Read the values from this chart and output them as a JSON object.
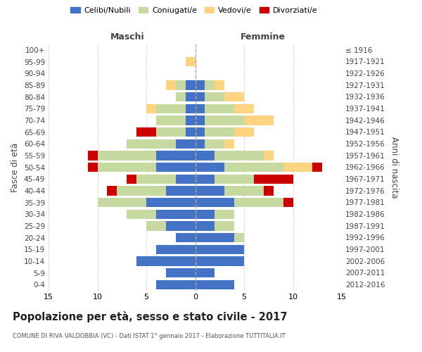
{
  "age_groups": [
    "0-4",
    "5-9",
    "10-14",
    "15-19",
    "20-24",
    "25-29",
    "30-34",
    "35-39",
    "40-44",
    "45-49",
    "50-54",
    "55-59",
    "60-64",
    "65-69",
    "70-74",
    "75-79",
    "80-84",
    "85-89",
    "90-94",
    "95-99",
    "100+"
  ],
  "birth_years": [
    "2012-2016",
    "2007-2011",
    "2002-2006",
    "1997-2001",
    "1992-1996",
    "1987-1991",
    "1982-1986",
    "1977-1981",
    "1972-1976",
    "1967-1971",
    "1962-1966",
    "1957-1961",
    "1952-1956",
    "1947-1951",
    "1942-1946",
    "1937-1941",
    "1932-1936",
    "1927-1931",
    "1922-1926",
    "1917-1921",
    "≤ 1916"
  ],
  "maschi_celibe": [
    4,
    3,
    6,
    4,
    2,
    3,
    4,
    5,
    3,
    2,
    4,
    4,
    2,
    1,
    1,
    1,
    1,
    1,
    0,
    0,
    0
  ],
  "maschi_coniugato": [
    0,
    0,
    0,
    0,
    0,
    2,
    3,
    5,
    5,
    4,
    6,
    6,
    5,
    3,
    3,
    3,
    1,
    1,
    0,
    0,
    0
  ],
  "maschi_vedovo": [
    0,
    0,
    0,
    0,
    0,
    0,
    0,
    0,
    0,
    0,
    0,
    0,
    0,
    0,
    0,
    1,
    0,
    1,
    0,
    1,
    0
  ],
  "maschi_divorziato": [
    0,
    0,
    0,
    0,
    0,
    0,
    0,
    0,
    1,
    1,
    1,
    1,
    0,
    2,
    0,
    0,
    0,
    0,
    0,
    0,
    0
  ],
  "femmine_celibe": [
    4,
    2,
    5,
    5,
    4,
    2,
    2,
    4,
    3,
    2,
    3,
    2,
    1,
    1,
    1,
    1,
    1,
    1,
    0,
    0,
    0
  ],
  "femmine_coniugato": [
    0,
    0,
    0,
    0,
    1,
    2,
    2,
    5,
    4,
    4,
    6,
    5,
    2,
    3,
    4,
    3,
    2,
    1,
    0,
    0,
    0
  ],
  "femmine_vedovo": [
    0,
    0,
    0,
    0,
    0,
    0,
    0,
    0,
    0,
    0,
    3,
    1,
    1,
    2,
    3,
    2,
    2,
    1,
    0,
    0,
    0
  ],
  "femmine_divorziato": [
    0,
    0,
    0,
    0,
    0,
    0,
    0,
    1,
    1,
    4,
    1,
    0,
    0,
    0,
    0,
    0,
    0,
    0,
    0,
    0,
    0
  ],
  "color_celibe": "#4472c4",
  "color_coniugato": "#c5d9a0",
  "color_vedovo": "#fcd380",
  "color_divorziato": "#cc0000",
  "title": "Popolazione per età, sesso e stato civile - 2017",
  "subtitle": "COMUNE DI RIVA VALDOBBIA (VC) - Dati ISTAT 1° gennaio 2017 - Elaborazione TUTTITALIA.IT",
  "xlabel_left": "Maschi",
  "xlabel_right": "Femmine",
  "ylabel_left": "Fasce di età",
  "ylabel_right": "Anni di nascita",
  "xlim": 15,
  "legend_labels": [
    "Celibi/Nubili",
    "Coniugati/e",
    "Vedovi/e",
    "Divorziati/e"
  ],
  "background_color": "#ffffff",
  "grid_color": "#cccccc"
}
